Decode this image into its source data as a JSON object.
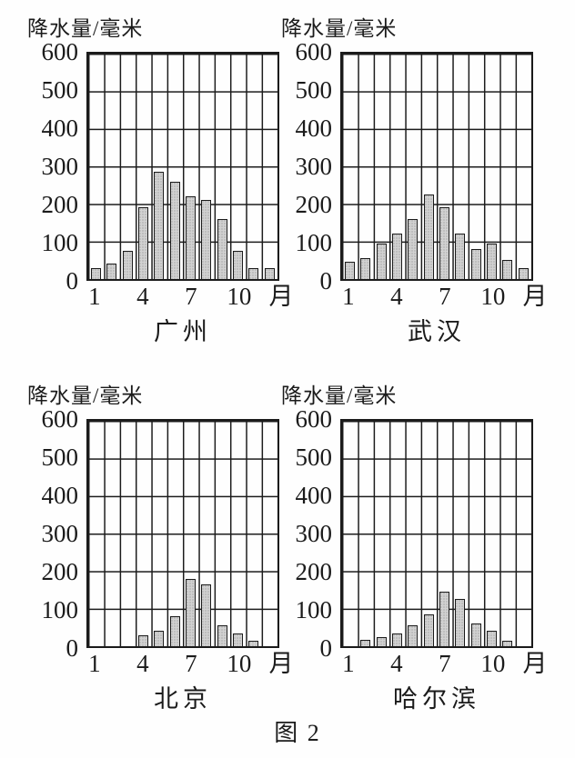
{
  "figure": {
    "caption": "图 2"
  },
  "chart_data": [
    {
      "type": "bar",
      "title": "广州",
      "ylabel": "降水量/毫米",
      "xlabel": "月",
      "categories": [
        1,
        2,
        3,
        4,
        5,
        6,
        7,
        8,
        9,
        10,
        11,
        12
      ],
      "values": [
        30,
        40,
        75,
        190,
        285,
        260,
        220,
        210,
        160,
        75,
        30,
        30
      ],
      "ylim": [
        0,
        600
      ],
      "yticks": [
        600,
        500,
        400,
        300,
        200,
        100,
        0
      ],
      "xticks_labeled": [
        1,
        4,
        7,
        10
      ],
      "grid": true,
      "bar_color": "#d2d2d2",
      "line_color": "#1b1b1b"
    },
    {
      "type": "bar",
      "title": "武汉",
      "ylabel": "降水量/毫米",
      "xlabel": "月",
      "categories": [
        1,
        2,
        3,
        4,
        5,
        6,
        7,
        8,
        9,
        10,
        11,
        12
      ],
      "values": [
        45,
        55,
        95,
        120,
        160,
        225,
        190,
        120,
        80,
        95,
        50,
        30
      ],
      "ylim": [
        0,
        600
      ],
      "yticks": [
        600,
        500,
        400,
        300,
        200,
        100,
        0
      ],
      "xticks_labeled": [
        1,
        4,
        7,
        10
      ],
      "grid": true,
      "bar_color": "#d2d2d2",
      "line_color": "#1b1b1b"
    },
    {
      "type": "bar",
      "title": "北京",
      "ylabel": "降水量/毫米",
      "xlabel": "月",
      "categories": [
        1,
        2,
        3,
        4,
        5,
        6,
        7,
        8,
        9,
        10,
        11,
        12
      ],
      "values": [
        0,
        0,
        0,
        30,
        40,
        80,
        180,
        165,
        55,
        35,
        15,
        0
      ],
      "ylim": [
        0,
        600
      ],
      "yticks": [
        600,
        500,
        400,
        300,
        200,
        100,
        0
      ],
      "xticks_labeled": [
        1,
        4,
        7,
        10
      ],
      "grid": true,
      "bar_color": "#d2d2d2",
      "line_color": "#1b1b1b"
    },
    {
      "type": "bar",
      "title": "哈尔滨",
      "ylabel": "降水量/毫米",
      "xlabel": "月",
      "categories": [
        1,
        2,
        3,
        4,
        5,
        6,
        7,
        8,
        9,
        10,
        11,
        12
      ],
      "values": [
        0,
        18,
        25,
        35,
        55,
        85,
        145,
        125,
        60,
        40,
        15,
        0
      ],
      "ylim": [
        0,
        600
      ],
      "yticks": [
        600,
        500,
        400,
        300,
        200,
        100,
        0
      ],
      "xticks_labeled": [
        1,
        4,
        7,
        10
      ],
      "grid": true,
      "bar_color": "#d2d2d2",
      "line_color": "#1b1b1b"
    }
  ]
}
